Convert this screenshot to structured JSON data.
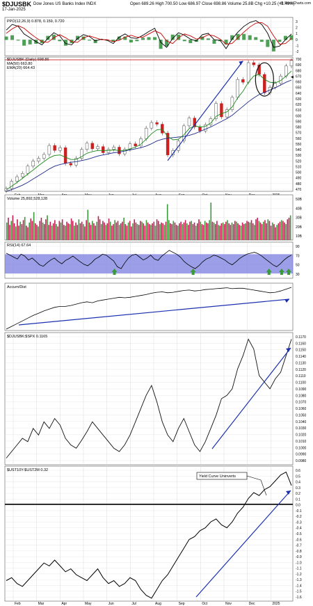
{
  "header": {
    "symbol": "$DJUSBK",
    "name": "Dow Jones US Banks Index  INDX",
    "date": "17-Jan-2025",
    "ohlc": "Open 689.26  High 700.50  Low 686.97  Close 698.86  Volume 25.8B  Chg +10.25 (+1.49%)",
    "change": "+10.25 (+1.49%)",
    "brand": "@ StockCharts.com"
  },
  "chart_data": [
    {
      "type": "line",
      "panel": "ppo",
      "legend": "PPO(12,26,9)  0.878,  0.159,  0.720",
      "ylim": [
        -2.5,
        3.5
      ],
      "yticks": [
        "3",
        "2",
        "1",
        "0",
        "-1",
        "-2"
      ],
      "series": [
        {
          "name": "PPO",
          "color": "#000000",
          "values": [
            1.5,
            2.4,
            2.1,
            0.9,
            0.3,
            -0.3,
            -0.8,
            0.2,
            1.1,
            0.6,
            -0.6,
            -0.8,
            0.2,
            0.8,
            0.5,
            -0.2,
            0.1,
            -0.1,
            -0.6,
            0.4,
            0.9,
            0.3,
            0.2,
            0.7,
            1.3,
            1.8,
            -0.4,
            -1.2,
            0.2,
            1.1,
            0.7,
            0.1,
            -0.2,
            0.8,
            1.0,
            0.0,
            -0.1,
            -1.4,
            0.1,
            1.2,
            2.1,
            2.7,
            3.0,
            2.4,
            1.0,
            -1.2,
            -1.0,
            0.0,
            0.9
          ]
        },
        {
          "name": "Signal",
          "color": "#cc0000",
          "values": [
            1.0,
            1.7,
            2.2,
            1.8,
            1.0,
            0.3,
            -0.3,
            -0.4,
            0.3,
            0.8,
            0.3,
            -0.3,
            -0.4,
            0.3,
            0.6,
            0.3,
            0.0,
            0.0,
            -0.3,
            -0.1,
            0.4,
            0.7,
            0.4,
            0.4,
            0.9,
            1.4,
            1.0,
            -0.2,
            -0.6,
            0.3,
            0.9,
            0.6,
            0.1,
            0.3,
            0.8,
            0.6,
            0.1,
            -0.7,
            -0.6,
            0.3,
            1.2,
            2.0,
            2.6,
            2.7,
            2.1,
            0.6,
            -0.7,
            -0.6,
            0.2
          ]
        }
      ]
    },
    {
      "type": "line",
      "panel": "price",
      "legend": [
        "$DJUSBK (Daily) 698.86",
        "MA(50) 663.80",
        "EMA(20) 664.43"
      ],
      "x_labels": [
        "Feb",
        "Mar",
        "Apr",
        "May",
        "Jun",
        "Jul",
        "Aug",
        "Sep",
        "Oct",
        "Nov",
        "Dec",
        "2025"
      ],
      "ylim": [
        465,
        705
      ],
      "yticks": [
        "700",
        "690",
        "680",
        "670",
        "660",
        "650",
        "640",
        "630",
        "620",
        "610",
        "600",
        "590",
        "580",
        "570",
        "560",
        "550",
        "540",
        "530",
        "520",
        "510",
        "500",
        "490",
        "480",
        "470"
      ],
      "series": [
        {
          "name": "$DJUSBK",
          "color": "#000000",
          "values": [
            470,
            483,
            491,
            497,
            510,
            519,
            524,
            531,
            547,
            538,
            543,
            515,
            512,
            524,
            540,
            551,
            541,
            545,
            534,
            540,
            544,
            532,
            540,
            550,
            546,
            559,
            578,
            588,
            585,
            569,
            530,
            538,
            555,
            582,
            596,
            580,
            573,
            584,
            595,
            622,
            598,
            611,
            633,
            665,
            660,
            695,
            691,
            674,
            641,
            651,
            658,
            671,
            689,
            699
          ]
        },
        {
          "name": "MA(50)",
          "color": "#1f2a8a",
          "values": [
            465,
            468,
            472,
            476,
            481,
            487,
            493,
            499,
            505,
            510,
            513,
            515,
            517,
            518,
            520,
            522,
            525,
            528,
            530,
            532,
            534,
            535,
            537,
            539,
            541,
            543,
            546,
            550,
            555,
            558,
            560,
            561,
            562,
            563,
            565,
            568,
            572,
            576,
            580,
            585,
            590,
            595,
            601,
            609,
            617,
            625,
            632,
            638,
            642,
            646,
            650,
            655,
            660,
            664
          ]
        },
        {
          "name": "EMA(20)",
          "color": "#1a8a1a",
          "values": [
            468,
            474,
            481,
            488,
            496,
            503,
            511,
            518,
            525,
            529,
            530,
            526,
            522,
            522,
            527,
            533,
            536,
            538,
            538,
            538,
            539,
            538,
            538,
            541,
            544,
            549,
            558,
            568,
            575,
            576,
            563,
            557,
            558,
            566,
            577,
            582,
            580,
            581,
            587,
            599,
            604,
            607,
            616,
            632,
            644,
            660,
            671,
            674,
            665,
            660,
            659,
            663,
            671,
            680
          ]
        }
      ],
      "annotations": [
        "horizontal red line",
        "blue up-trend arrows",
        "black cup ellipse",
        "green arrows"
      ]
    },
    {
      "type": "bar",
      "panel": "volume",
      "legend": "Volume 25,892,528,128",
      "yticks": [
        "50B",
        "40B",
        "30B",
        "20B",
        "10B"
      ],
      "ylim": [
        0,
        55
      ],
      "values": [
        22,
        28,
        19,
        24,
        31,
        21,
        17,
        26,
        18,
        23,
        20,
        25,
        29,
        18,
        16,
        22,
        27,
        24,
        35,
        21,
        19,
        17,
        24,
        28,
        22,
        20,
        26,
        31,
        19,
        23,
        18,
        21,
        25,
        20,
        17,
        24,
        22,
        26,
        19,
        18,
        23,
        21,
        20,
        27,
        24,
        18,
        22,
        19,
        26,
        21,
        23,
        20,
        17,
        25,
        38,
        22,
        19,
        24,
        21,
        18,
        23,
        30,
        26,
        20,
        24,
        22,
        19,
        21,
        27,
        23,
        18,
        20,
        25,
        22,
        24,
        19,
        21,
        23,
        28,
        20,
        18,
        22,
        24,
        17,
        21,
        26,
        22,
        20,
        19,
        24,
        23,
        21,
        18,
        25,
        22,
        20,
        19,
        21,
        23,
        18,
        26,
        24,
        20,
        22,
        21,
        19,
        23,
        45,
        25,
        21,
        20,
        24,
        22,
        19,
        18,
        21,
        23,
        20,
        22,
        25,
        21,
        19,
        23,
        24,
        20,
        22,
        18,
        21,
        26,
        23,
        20,
        19,
        24,
        22,
        21,
        25,
        47,
        23,
        22,
        20,
        24,
        19,
        18,
        21,
        22,
        20,
        23,
        25,
        21,
        19,
        22,
        20,
        24,
        23,
        21,
        19,
        18,
        22,
        20,
        21,
        24,
        23,
        22,
        25,
        21,
        19,
        26,
        28,
        24,
        22,
        20,
        23,
        25,
        21,
        26,
        24,
        18,
        22,
        20,
        16,
        19,
        21,
        23,
        25,
        24,
        22,
        20,
        26,
        28,
        31
      ],
      "colors_note": "red down days, green up days"
    },
    {
      "type": "line",
      "panel": "rsi",
      "legend": "RSI(14) 67.64",
      "ylim": [
        20,
        95
      ],
      "yticks": [
        "90",
        "70",
        "50",
        "30"
      ],
      "series": [
        {
          "name": "RSI(14)",
          "color": "#000000",
          "values": [
            72,
            68,
            64,
            60,
            70,
            66,
            58,
            62,
            55,
            48,
            45,
            52,
            58,
            62,
            55,
            50,
            57,
            61,
            66,
            60,
            54,
            49,
            46,
            52,
            60,
            64,
            70,
            68,
            62,
            56,
            44,
            40,
            52,
            62,
            68,
            70,
            64,
            58,
            62,
            68,
            60,
            57,
            66,
            72,
            78,
            74,
            70,
            64,
            55,
            49,
            44,
            40,
            46,
            54,
            60,
            63,
            68,
            66,
            62,
            58,
            52,
            48,
            54,
            61,
            66,
            70,
            72,
            74,
            71,
            66,
            60,
            54,
            48,
            44,
            50,
            58,
            64,
            68
          ]
        }
      ]
    },
    {
      "type": "line",
      "panel": "accum_dist",
      "legend": "Accum/Dist",
      "series": [
        {
          "name": "Accum/Dist",
          "color": "#000000",
          "values": [
            0,
            6,
            12,
            18,
            24,
            30,
            35,
            40,
            44,
            48,
            50,
            50,
            52,
            55,
            58,
            60,
            58,
            62,
            64,
            66,
            68,
            70,
            69,
            70,
            72,
            74,
            76,
            79,
            81,
            82,
            80,
            81,
            83,
            85,
            86,
            84,
            85,
            87,
            88,
            89,
            90,
            91,
            89,
            90,
            90,
            88,
            86,
            84,
            82,
            80,
            81,
            84,
            88,
            92
          ]
        }
      ]
    },
    {
      "type": "line",
      "panel": "ratio",
      "legend": "$DJUSBK:$SPX 0.1165",
      "ylim": [
        0.0975,
        0.1175
      ],
      "yticks": [
        "0.1170",
        "0.1160",
        "0.1150",
        "0.1140",
        "0.1130",
        "0.1120",
        "0.1110",
        "0.1100",
        "0.1090",
        "0.1080",
        "0.1070",
        "0.1060",
        "0.1050",
        "0.1040",
        "0.1030",
        "0.1020",
        "0.1010",
        "0.1000",
        "0.0990",
        "0.0980"
      ],
      "series": [
        {
          "name": "$DJUSBK:$SPX",
          "color": "#000000",
          "values": [
            0.0985,
            0.0995,
            0.1005,
            0.1015,
            0.101,
            0.103,
            0.102,
            0.104,
            0.103,
            0.1045,
            0.1035,
            0.1015,
            0.1005,
            0.1,
            0.1012,
            0.1025,
            0.104,
            0.103,
            0.102,
            0.101,
            0.1,
            0.0995,
            0.1005,
            0.102,
            0.104,
            0.106,
            0.108,
            0.1095,
            0.107,
            0.104,
            0.102,
            0.101,
            0.103,
            0.1045,
            0.1025,
            0.1005,
            0.0995,
            0.101,
            0.103,
            0.105,
            0.1075,
            0.108,
            0.109,
            0.112,
            0.114,
            0.1165,
            0.115,
            0.111,
            0.11,
            0.109,
            0.1105,
            0.1115,
            0.114,
            0.1165
          ]
        }
      ]
    },
    {
      "type": "line",
      "panel": "yield_curve",
      "legend": "$UST10Y-$UST2M 0.32",
      "annotation": "Yield Curve Uninverts",
      "ylim": [
        -1.65,
        0.65
      ],
      "yticks": [
        "0.6",
        "0.5",
        "0.4",
        "0.3",
        "0.2",
        "0.1",
        "0.0",
        "-0.1",
        "-0.2",
        "-0.3",
        "-0.4",
        "-0.5",
        "-0.6",
        "-0.7",
        "-0.8",
        "-0.9",
        "-1.0",
        "-1.1",
        "-1.2",
        "-1.3",
        "-1.4",
        "-1.5",
        "-1.6"
      ],
      "x_labels": [
        "Feb",
        "Mar",
        "Apr",
        "May",
        "Jun",
        "Jul",
        "Aug",
        "Sep",
        "Oct",
        "Nov",
        "Dec",
        "2025"
      ],
      "series": [
        {
          "name": "$UST10Y-$UST2M",
          "color": "#000000",
          "values": [
            -1.3,
            -1.25,
            -1.35,
            -1.4,
            -1.3,
            -1.2,
            -1.1,
            -1.0,
            -1.05,
            -0.95,
            -1.05,
            -1.15,
            -1.1,
            -1.2,
            -1.25,
            -1.3,
            -1.2,
            -1.1,
            -1.25,
            -1.35,
            -1.3,
            -1.4,
            -1.35,
            -1.25,
            -1.3,
            -1.45,
            -1.55,
            -1.6,
            -1.45,
            -1.3,
            -1.2,
            -1.05,
            -0.9,
            -0.75,
            -0.6,
            -0.55,
            -0.45,
            -0.4,
            -0.3,
            -0.25,
            -0.35,
            -0.4,
            -0.3,
            -0.15,
            -0.05,
            0.1,
            0.2,
            0.15,
            0.25,
            0.3,
            0.4,
            0.5,
            0.55,
            0.32
          ]
        }
      ]
    }
  ]
}
